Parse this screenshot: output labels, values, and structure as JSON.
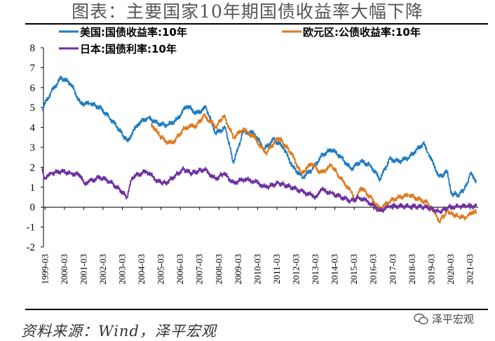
{
  "title": "图表：主要国家10年期国债收益率大幅下降",
  "source": "资料来源：Wind，泽平宏观",
  "watermark": "泽平宏观",
  "colors": {
    "us": "#1f7cc1",
    "eu": "#e07a1f",
    "jp": "#7030a0",
    "axis": "#000000"
  },
  "chart_data": {
    "type": "line",
    "title": "图表：主要国家10年期国债收益率大幅下降",
    "xlabel": "",
    "ylabel": "",
    "ylim": [
      -2,
      8
    ],
    "yticks": [
      "8",
      "7",
      "6",
      "5",
      "4",
      "3",
      "2",
      "1",
      "0",
      "-1",
      "-2"
    ],
    "xticks": [
      "1999-03",
      "2000-03",
      "2001-03",
      "2002-03",
      "2003-03",
      "2004-03",
      "2005-03",
      "2006-03",
      "2007-03",
      "2008-03",
      "2009-03",
      "2010-03",
      "2011-03",
      "2012-03",
      "2013-03",
      "2014-03",
      "2015-03",
      "2016-03",
      "2017-03",
      "2018-03",
      "2019-03",
      "2020-03",
      "2021-03"
    ],
    "legend_position": "top",
    "grid": false,
    "series": [
      {
        "name": "美国:国债收益率:10年",
        "color": "#1f7cc1",
        "x": [
          "1999-01",
          "1999-07",
          "2000-01",
          "2000-07",
          "2001-01",
          "2001-07",
          "2002-01",
          "2002-07",
          "2003-01",
          "2003-06",
          "2004-01",
          "2004-07",
          "2005-01",
          "2005-07",
          "2006-01",
          "2006-07",
          "2007-01",
          "2007-07",
          "2008-01",
          "2008-07",
          "2008-12",
          "2009-06",
          "2010-01",
          "2010-07",
          "2011-01",
          "2011-07",
          "2012-01",
          "2012-07",
          "2013-01",
          "2013-07",
          "2014-01",
          "2014-07",
          "2015-01",
          "2015-07",
          "2016-01",
          "2016-07",
          "2017-01",
          "2017-07",
          "2018-01",
          "2018-10",
          "2019-01",
          "2019-08",
          "2020-01",
          "2020-03",
          "2020-08",
          "2021-01",
          "2021-03",
          "2021-07"
        ],
        "values": [
          4.9,
          5.8,
          6.5,
          6.2,
          5.2,
          5.2,
          5.0,
          4.5,
          3.9,
          3.3,
          4.2,
          4.5,
          4.2,
          4.1,
          4.4,
          5.1,
          4.7,
          5.0,
          3.7,
          4.0,
          2.2,
          3.8,
          3.7,
          2.9,
          3.4,
          3.0,
          2.0,
          1.5,
          1.9,
          2.6,
          2.9,
          2.5,
          1.9,
          2.3,
          2.1,
          1.4,
          2.4,
          2.3,
          2.5,
          3.2,
          2.7,
          1.5,
          1.8,
          0.7,
          0.6,
          1.1,
          1.7,
          1.3
        ]
      },
      {
        "name": "欧元区:公债收益率:10年",
        "color": "#e07a1f",
        "x": [
          "2004-09",
          "2005-01",
          "2005-06",
          "2005-10",
          "2006-06",
          "2007-01",
          "2007-06",
          "2008-01",
          "2008-06",
          "2008-12",
          "2009-06",
          "2010-01",
          "2010-08",
          "2011-04",
          "2011-12",
          "2012-06",
          "2013-01",
          "2013-06",
          "2014-01",
          "2014-06",
          "2015-01",
          "2015-04",
          "2015-07",
          "2016-01",
          "2016-07",
          "2017-01",
          "2017-07",
          "2018-01",
          "2018-07",
          "2019-01",
          "2019-08",
          "2020-01",
          "2020-03",
          "2020-08",
          "2021-01",
          "2021-05",
          "2021-07"
        ],
        "values": [
          4.2,
          3.7,
          3.3,
          3.2,
          4.0,
          4.1,
          4.6,
          4.0,
          4.6,
          3.5,
          3.9,
          3.5,
          2.7,
          3.5,
          2.7,
          1.7,
          2.2,
          1.7,
          2.1,
          1.5,
          0.8,
          0.3,
          1.0,
          0.5,
          -0.1,
          0.3,
          0.5,
          0.6,
          0.4,
          0.2,
          -0.7,
          -0.2,
          -0.3,
          -0.5,
          -0.5,
          -0.2,
          -0.3
        ]
      },
      {
        "name": "日本:国债利率:10年",
        "color": "#7030a0",
        "x": [
          "1999-01",
          "1999-03",
          "1999-07",
          "2000-01",
          "2000-07",
          "2001-01",
          "2001-03",
          "2001-07",
          "2002-01",
          "2002-07",
          "2003-01",
          "2003-06",
          "2003-09",
          "2004-06",
          "2005-01",
          "2005-06",
          "2006-05",
          "2006-10",
          "2007-06",
          "2008-01",
          "2008-06",
          "2008-12",
          "2009-06",
          "2010-01",
          "2010-08",
          "2011-04",
          "2011-12",
          "2012-06",
          "2013-04",
          "2013-06",
          "2014-01",
          "2014-07",
          "2015-01",
          "2015-06",
          "2016-01",
          "2016-07",
          "2017-01",
          "2018-01",
          "2018-12",
          "2019-08",
          "2020-01",
          "2020-08",
          "2021-01",
          "2021-07"
        ],
        "values": [
          1.9,
          1.4,
          1.7,
          1.8,
          1.7,
          1.6,
          1.2,
          1.3,
          1.5,
          1.3,
          0.9,
          0.5,
          1.5,
          1.8,
          1.3,
          1.2,
          1.9,
          1.7,
          1.9,
          1.4,
          1.7,
          1.2,
          1.4,
          1.3,
          1.0,
          1.2,
          1.0,
          0.8,
          0.5,
          0.9,
          0.7,
          0.5,
          0.3,
          0.5,
          0.2,
          -0.2,
          0.05,
          0.05,
          0.0,
          -0.25,
          -0.02,
          0.05,
          0.05,
          0.05
        ]
      }
    ]
  }
}
